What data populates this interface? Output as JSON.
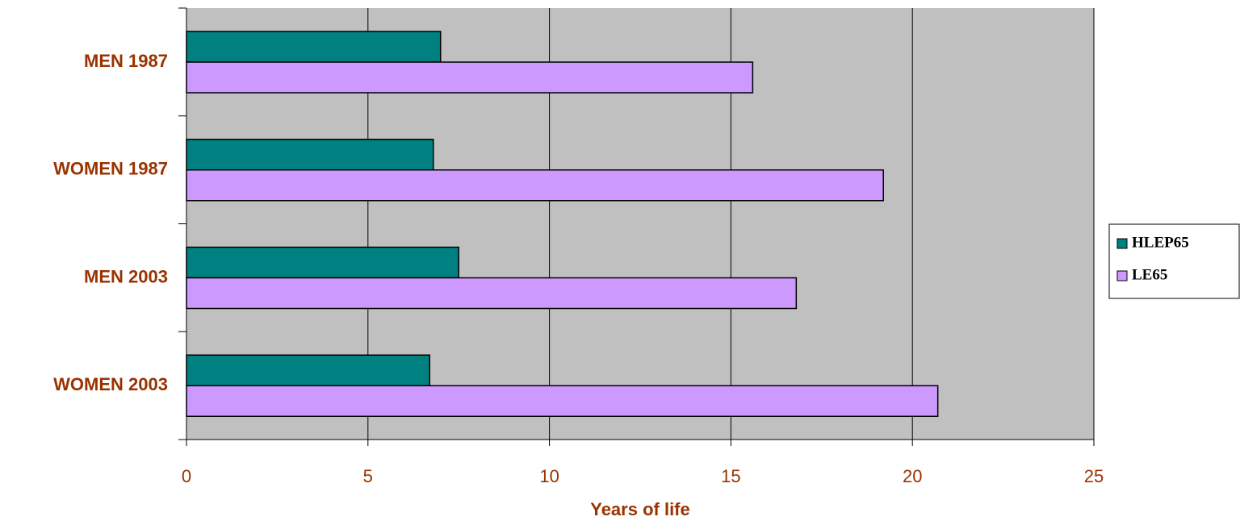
{
  "chart_data": {
    "type": "bar",
    "orientation": "horizontal",
    "xlabel": "Years of life",
    "categories": [
      "MEN 1987",
      "WOMEN 1987",
      "MEN 2003",
      "WOMEN 2003"
    ],
    "series": [
      {
        "name": "HLEP65",
        "color": "#008080",
        "values": [
          7.0,
          6.8,
          7.5,
          6.7
        ]
      },
      {
        "name": "LE65",
        "color": "#cc99ff",
        "values": [
          15.6,
          19.2,
          16.8,
          20.7
        ]
      }
    ],
    "xlim": [
      0,
      25
    ],
    "xticks": [
      0,
      5,
      10,
      15,
      20,
      25
    ],
    "grid": true,
    "legend": "right",
    "background": "#c0c0c0"
  }
}
